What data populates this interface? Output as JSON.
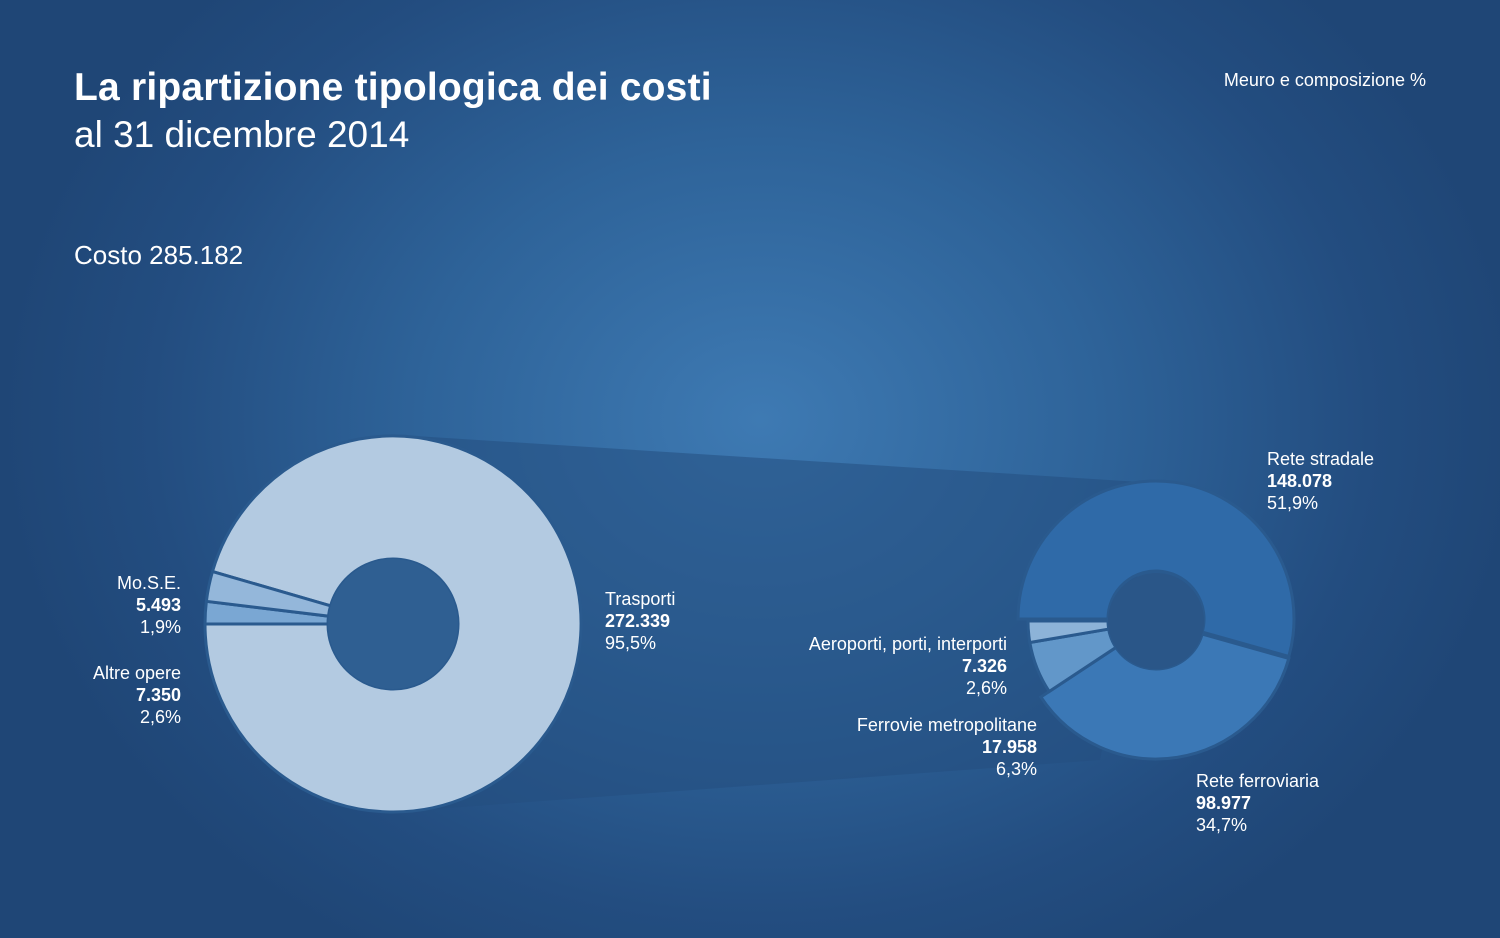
{
  "header": {
    "title": "La ripartizione tipologica dei costi",
    "subtitle": "al 31 dicembre 2014",
    "units": "Meuro e composizione %",
    "total_label": "Costo",
    "total_value": "285.182"
  },
  "colors": {
    "trasporti": "#b3cae1",
    "mose": "#7aa7d3",
    "altre_opere": "#94b7da",
    "rete_stradale": "#2f6aa8",
    "rete_ferroviaria": "#3b78b6",
    "ferrovie_metropolitane": "#6297c9",
    "aeroporti": "#8db3d8",
    "connector": "#254f80",
    "hole": "#2f5f92"
  },
  "chart_data": [
    {
      "type": "pie",
      "variant": "donut",
      "slices": [
        {
          "key": "trasporti",
          "label": "Trasporti",
          "value": 272339,
          "value_text": "272.339",
          "percent_text": "95,5%"
        },
        {
          "key": "mose",
          "label": "Mo.S.E.",
          "value": 5493,
          "value_text": "5.493",
          "percent_text": "1,9%"
        },
        {
          "key": "altre_opere",
          "label": "Altre opere",
          "value": 7350,
          "value_text": "7.350",
          "percent_text": "2,6%"
        }
      ]
    },
    {
      "type": "pie",
      "variant": "donut",
      "breakdown_of": "Trasporti",
      "slices": [
        {
          "key": "rete_stradale",
          "label": "Rete stradale",
          "value": 148078,
          "value_text": "148.078",
          "percent_text": "51,9%"
        },
        {
          "key": "rete_ferroviaria",
          "label": "Rete ferroviaria",
          "value": 98977,
          "value_text": "98.977",
          "percent_text": "34,7%"
        },
        {
          "key": "ferrovie_metropolitane",
          "label": "Ferrovie metropolitane",
          "value": 17958,
          "value_text": "17.958",
          "percent_text": "6,3%"
        },
        {
          "key": "aeroporti",
          "label": "Aeroporti, porti, interporti",
          "value": 7326,
          "value_text": "7.326",
          "percent_text": "2,6%"
        }
      ]
    }
  ]
}
